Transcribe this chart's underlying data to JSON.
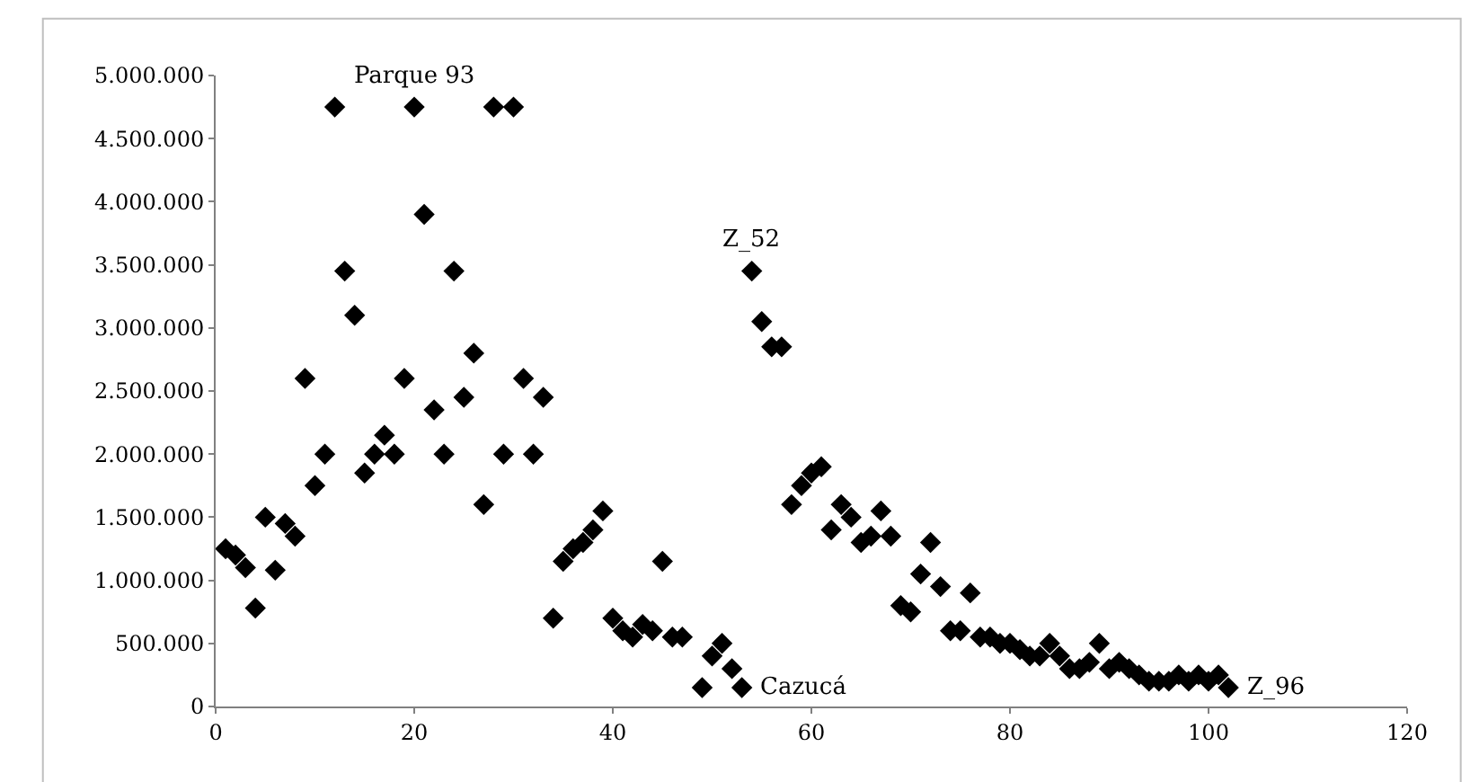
{
  "chart_data": {
    "type": "scatter",
    "marker": "diamond",
    "grid": false,
    "legend": false,
    "xlim": [
      0,
      120
    ],
    "xticks": [
      0,
      20,
      40,
      60,
      80,
      100,
      120
    ],
    "ylim": [
      0,
      5000000
    ],
    "yticks": [
      {
        "value": 0,
        "label": "0"
      },
      {
        "value": 500000,
        "label": "500.000"
      },
      {
        "value": 1000000,
        "label": "1.000.000"
      },
      {
        "value": 1500000,
        "label": "1.500.000"
      },
      {
        "value": 2000000,
        "label": "2.000.000"
      },
      {
        "value": 2500000,
        "label": "2.500.000"
      },
      {
        "value": 3000000,
        "label": "3.000.000"
      },
      {
        "value": 3500000,
        "label": "3.500.000"
      },
      {
        "value": 4000000,
        "label": "4.000.000"
      },
      {
        "value": 4500000,
        "label": "4.500.000"
      },
      {
        "value": 5000000,
        "label": "5.000.000"
      }
    ],
    "annotations": [
      {
        "text": "Parque 93",
        "x": 20,
        "y": 4750000
      },
      {
        "text": "Z_52",
        "x": 54,
        "y": 3450000
      },
      {
        "text": "Cazucá",
        "x": 53,
        "y": 150000
      },
      {
        "text": "Z_96",
        "x": 102,
        "y": 150000
      }
    ],
    "series": [
      {
        "color": "#000000",
        "x": [
          1,
          2,
          3,
          4,
          5,
          6,
          7,
          8,
          9,
          10,
          11,
          12,
          13,
          14,
          15,
          16,
          17,
          18,
          19,
          20,
          21,
          22,
          23,
          24,
          25,
          26,
          27,
          28,
          29,
          30,
          31,
          32,
          33,
          34,
          35,
          36,
          37,
          38,
          39,
          40,
          41,
          42,
          43,
          44,
          45,
          46,
          47,
          49,
          50,
          51,
          52,
          53,
          54,
          55,
          56,
          57,
          58,
          59,
          60,
          61,
          62,
          63,
          64,
          65,
          66,
          67,
          68,
          69,
          70,
          71,
          72,
          73,
          74,
          75,
          76,
          77,
          78,
          79,
          80,
          81,
          82,
          83,
          84,
          85,
          86,
          87,
          88,
          89,
          90,
          91,
          92,
          93,
          94,
          95,
          96,
          97,
          98,
          99,
          100,
          101,
          102
        ],
        "values": [
          1250000,
          1200000,
          1100000,
          780000,
          1500000,
          1080000,
          1450000,
          1350000,
          2600000,
          1750000,
          2000000,
          4750000,
          3450000,
          3100000,
          1850000,
          2000000,
          2150000,
          2000000,
          2600000,
          4750000,
          3900000,
          2350000,
          2000000,
          3450000,
          2450000,
          2800000,
          1600000,
          4750000,
          2000000,
          4750000,
          2600000,
          2000000,
          2450000,
          700000,
          1150000,
          1250000,
          1300000,
          1400000,
          1550000,
          700000,
          600000,
          550000,
          650000,
          600000,
          1150000,
          550000,
          550000,
          150000,
          400000,
          500000,
          300000,
          150000,
          3450000,
          3050000,
          2850000,
          2850000,
          1600000,
          1750000,
          1850000,
          1900000,
          1400000,
          1600000,
          1500000,
          1300000,
          1350000,
          1550000,
          1350000,
          800000,
          750000,
          1050000,
          1300000,
          950000,
          600000,
          600000,
          900000,
          550000,
          550000,
          500000,
          500000,
          450000,
          400000,
          400000,
          500000,
          400000,
          300000,
          300000,
          350000,
          500000,
          300000,
          350000,
          300000,
          250000,
          200000,
          200000,
          200000,
          250000,
          200000,
          250000,
          200000,
          250000,
          150000
        ]
      }
    ]
  }
}
